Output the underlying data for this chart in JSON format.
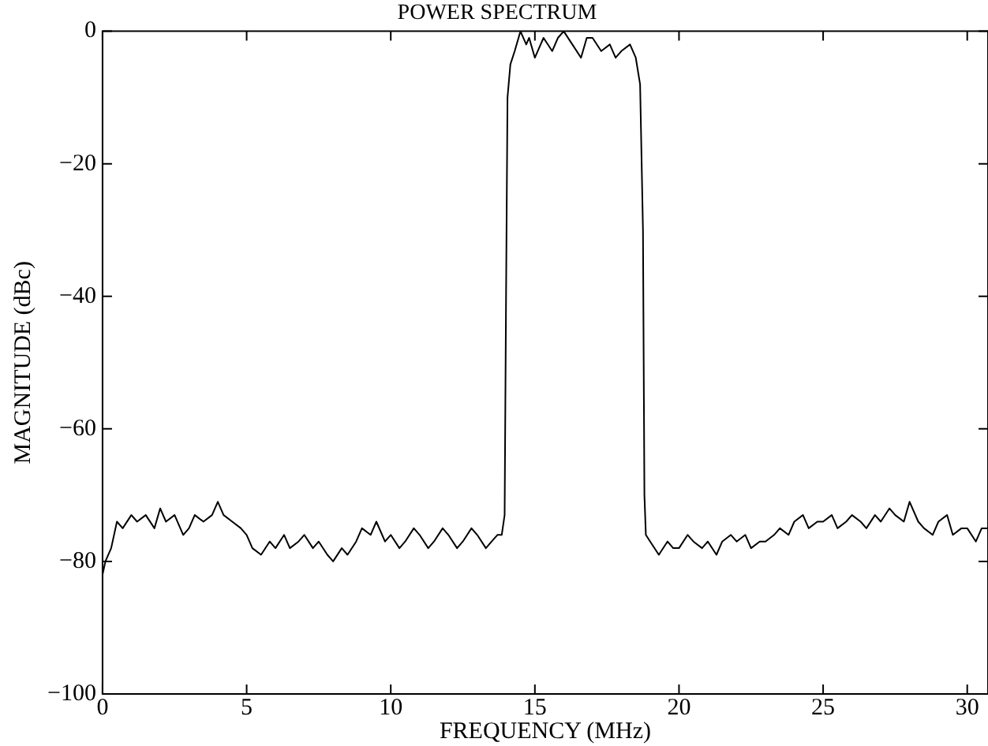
{
  "chart_data": {
    "type": "line",
    "title": "POWER SPECTRUM",
    "xlabel": "FREQUENCY (MHz)",
    "ylabel": "MAGNITUDE (dBc)",
    "x": [
      0,
      0.1,
      0.3,
      0.5,
      0.7,
      1,
      1.2,
      1.5,
      1.8,
      2,
      2.2,
      2.5,
      2.8,
      3,
      3.2,
      3.5,
      3.8,
      4,
      4.2,
      4.5,
      4.8,
      5,
      5.2,
      5.5,
      5.8,
      6,
      6.3,
      6.5,
      6.8,
      7,
      7.3,
      7.5,
      7.8,
      8,
      8.3,
      8.5,
      8.8,
      9,
      9.3,
      9.5,
      9.8,
      10,
      10.3,
      10.5,
      10.8,
      11,
      11.3,
      11.5,
      11.8,
      12,
      12.3,
      12.5,
      12.8,
      13,
      13.3,
      13.5,
      13.7,
      13.85,
      13.95,
      14,
      14.05,
      14.15,
      14.3,
      14.5,
      14.7,
      14.8,
      15,
      15.2,
      15.3,
      15.6,
      15.8,
      16,
      16.3,
      16.6,
      16.8,
      17,
      17.3,
      17.6,
      17.8,
      18,
      18.3,
      18.5,
      18.65,
      18.75,
      18.8,
      18.85,
      19,
      19.3,
      19.6,
      19.8,
      20,
      20.3,
      20.5,
      20.8,
      21,
      21.3,
      21.5,
      21.8,
      22,
      22.3,
      22.5,
      22.8,
      23,
      23.3,
      23.5,
      23.8,
      24,
      24.3,
      24.5,
      24.8,
      25,
      25.3,
      25.5,
      25.8,
      26,
      26.3,
      26.5,
      26.8,
      27,
      27.3,
      27.5,
      27.8,
      28,
      28.3,
      28.5,
      28.8,
      29,
      29.3,
      29.5,
      29.8,
      30,
      30.3,
      30.5,
      30.72
    ],
    "series": [
      {
        "color": "#000000",
        "values": [
          -82,
          -80,
          -78,
          -74,
          -75,
          -73,
          -74,
          -73,
          -75,
          -72,
          -74,
          -73,
          -76,
          -75,
          -73,
          -74,
          -73,
          -71,
          -73,
          -74,
          -75,
          -76,
          -78,
          -79,
          -77,
          -78,
          -76,
          -78,
          -77,
          -76,
          -78,
          -77,
          -79,
          -80,
          -78,
          -79,
          -77,
          -75,
          -76,
          -74,
          -77,
          -76,
          -78,
          -77,
          -75,
          -76,
          -78,
          -77,
          -75,
          -76,
          -78,
          -77,
          -75,
          -76,
          -78,
          -77,
          -76,
          -76,
          -73,
          -40,
          -10,
          -5,
          -3,
          0,
          -2,
          -1,
          -4,
          -2,
          -1,
          -3,
          -1,
          0,
          -2,
          -4,
          -1,
          -1,
          -3,
          -2,
          -4,
          -3,
          -2,
          -4,
          -8,
          -30,
          -70,
          -76,
          -77,
          -79,
          -77,
          -78,
          -78,
          -76,
          -77,
          -78,
          -77,
          -79,
          -77,
          -76,
          -77,
          -76,
          -78,
          -77,
          -77,
          -76,
          -75,
          -76,
          -74,
          -73,
          -75,
          -74,
          -74,
          -73,
          -75,
          -74,
          -73,
          -74,
          -75,
          -73,
          -74,
          -72,
          -73,
          -74,
          -71,
          -74,
          -75,
          -76,
          -74,
          -73,
          -76,
          -75,
          -75,
          -77,
          -75,
          -75
        ]
      }
    ],
    "xlim": [
      0,
      30.72
    ],
    "xticks": [
      0,
      5,
      10,
      15,
      20,
      25,
      30
    ],
    "ylim": [
      -100,
      0
    ],
    "yticks": [
      -100,
      -80,
      -60,
      -40,
      -20,
      0
    ],
    "grid": false,
    "legend": false,
    "marker": "none",
    "line_style": "solid"
  }
}
